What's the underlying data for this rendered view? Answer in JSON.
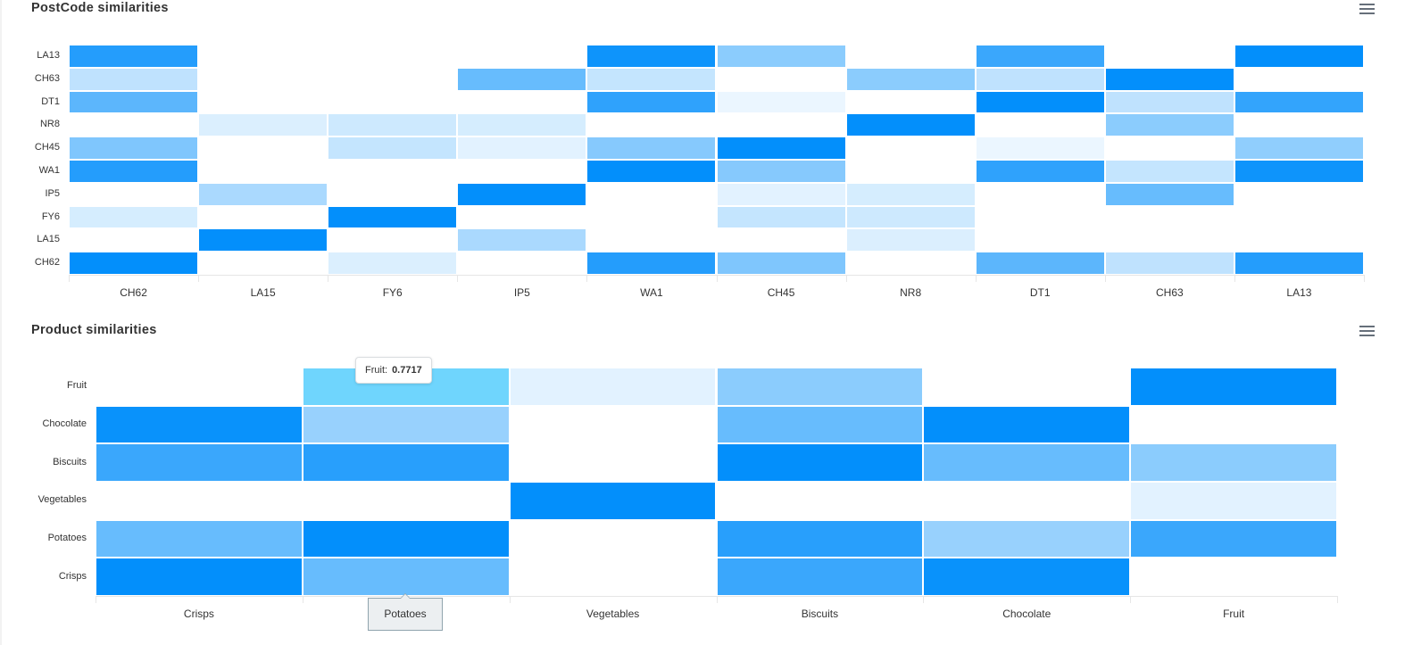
{
  "charts": {
    "postcode": {
      "title": "PostCode similarities",
      "menu_icon": "hamburger-menu-icon"
    },
    "product": {
      "title": "Product similarities",
      "menu_icon": "hamburger-menu-icon",
      "tooltip": {
        "label": "Fruit:",
        "value": "0.7717"
      },
      "x_crosshair_label": "Potatoes"
    }
  },
  "colors": {
    "max": "#038ffb",
    "min": "#ffffff",
    "highlight": "#6fd5fd",
    "axis": "#e6e6e6",
    "text": "#333333"
  },
  "chart_data": [
    {
      "type": "heatmap",
      "title": "PostCode similarities",
      "xlabel": "",
      "ylabel": "",
      "x_categories": [
        "CH62",
        "LA15",
        "FY6",
        "IP5",
        "WA1",
        "CH45",
        "NR8",
        "DT1",
        "CH63",
        "LA13"
      ],
      "y_categories_top_to_bottom": [
        "LA13",
        "CH63",
        "DT1",
        "NR8",
        "CH45",
        "WA1",
        "IP5",
        "FY6",
        "LA15",
        "CH62"
      ],
      "value_range": [
        0,
        1
      ],
      "values": [
        [
          0.85,
          0,
          0,
          0,
          0.95,
          0.4,
          0,
          0.75,
          0,
          1
        ],
        [
          0.2,
          0,
          0,
          0.55,
          0.18,
          0,
          0.4,
          0.2,
          1,
          0
        ],
        [
          0.6,
          0,
          0,
          0,
          0.8,
          0.05,
          0,
          1,
          0.2,
          0.78
        ],
        [
          0,
          0.1,
          0.15,
          0.12,
          0,
          0,
          1,
          0,
          0.4,
          0
        ],
        [
          0.45,
          0,
          0.18,
          0.08,
          0.42,
          1,
          0,
          0.05,
          0,
          0.38
        ],
        [
          0.85,
          0,
          0,
          0,
          1,
          0.42,
          0,
          0.8,
          0.18,
          0.95
        ],
        [
          0,
          0.28,
          0,
          1,
          0,
          0.08,
          0.12,
          0,
          0.55,
          0
        ],
        [
          0.12,
          0,
          1,
          0,
          0,
          0.18,
          0.15,
          0,
          0,
          0
        ],
        [
          0,
          1,
          0,
          0.28,
          0,
          0,
          0.1,
          0,
          0,
          0
        ],
        [
          1,
          0,
          0.1,
          0,
          0.85,
          0.45,
          0,
          0.6,
          0.2,
          0.85
        ]
      ],
      "grid": false,
      "legend": "none"
    },
    {
      "type": "heatmap",
      "title": "Product similarities",
      "xlabel": "",
      "ylabel": "",
      "x_categories": [
        "Crisps",
        "Potatoes",
        "Vegetables",
        "Biscuits",
        "Chocolate",
        "Fruit"
      ],
      "y_categories_top_to_bottom": [
        "Fruit",
        "Chocolate",
        "Biscuits",
        "Vegetables",
        "Potatoes",
        "Crisps"
      ],
      "value_range": [
        0,
        1
      ],
      "values": [
        [
          0,
          0.7717,
          0.08,
          0.4,
          0,
          1
        ],
        [
          0.97,
          0.35,
          0,
          0.55,
          1,
          0
        ],
        [
          0.75,
          0.83,
          0,
          1,
          0.55,
          0.4
        ],
        [
          0,
          0,
          1,
          0,
          0,
          0.08
        ],
        [
          0.55,
          1,
          0,
          0.83,
          0.35,
          0.75
        ],
        [
          1,
          0.55,
          0,
          0.75,
          0.97,
          0
        ]
      ],
      "hovered_cell": {
        "x": "Potatoes",
        "y": "Fruit",
        "value": 0.7717
      },
      "grid": false,
      "legend": "none"
    }
  ]
}
